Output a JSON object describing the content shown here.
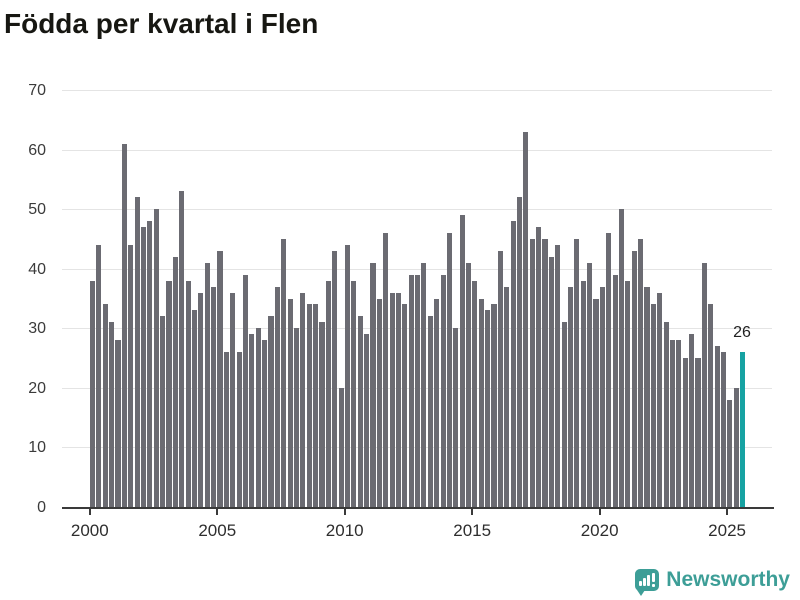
{
  "title": "Födda per kvartal i Flen",
  "annotation": {
    "last_value_label": "26"
  },
  "branding": {
    "logo_text": "Newsworthy",
    "logo_icon": "bar-chart-speech-bubble-icon"
  },
  "colors": {
    "bar": "#6b6b72",
    "highlight": "#16a2a2",
    "grid": "#e4e4e4",
    "axis": "#3a3a3a",
    "title_text": "#171712",
    "logo_teal": "#3d9e97"
  },
  "chart_data": {
    "type": "bar",
    "title": "Födda per kvartal i Flen",
    "unit": "births per quarter",
    "start_period": "2000-Q1",
    "end_period": "2025-Q3",
    "x_tick_labels": [
      "2000",
      "2005",
      "2010",
      "2015",
      "2020",
      "2025"
    ],
    "y_ticks": [
      0,
      10,
      20,
      30,
      40,
      50,
      60,
      70
    ],
    "ylim": [
      0,
      70
    ],
    "grid": true,
    "highlight_last_bar": true,
    "last_bar_label": 26,
    "series": [
      {
        "name": "Födda",
        "values_by_year": {
          "2000": [
            38,
            44,
            34,
            31
          ],
          "2001": [
            28,
            61,
            44,
            52
          ],
          "2002": [
            47,
            48,
            50,
            32
          ],
          "2003": [
            38,
            42,
            53,
            38
          ],
          "2004": [
            33,
            36,
            41,
            37
          ],
          "2005": [
            43,
            26,
            36,
            26
          ],
          "2006": [
            39,
            29,
            30,
            28
          ],
          "2007": [
            32,
            37,
            45,
            35
          ],
          "2008": [
            30,
            36,
            34,
            34
          ],
          "2009": [
            31,
            38,
            43,
            20
          ],
          "2010": [
            44,
            38,
            32,
            29
          ],
          "2011": [
            41,
            35,
            46,
            36
          ],
          "2012": [
            36,
            34,
            39,
            39
          ],
          "2013": [
            41,
            32,
            35,
            39
          ],
          "2014": [
            46,
            30,
            49,
            41
          ],
          "2015": [
            38,
            35,
            33,
            34
          ],
          "2016": [
            43,
            37,
            48,
            52
          ],
          "2017": [
            63,
            45,
            47,
            45
          ],
          "2018": [
            42,
            44,
            31,
            37
          ],
          "2019": [
            45,
            38,
            41,
            35
          ],
          "2020": [
            37,
            46,
            39,
            50
          ],
          "2021": [
            38,
            43,
            45,
            37
          ],
          "2022": [
            34,
            36,
            31,
            28
          ],
          "2023": [
            28,
            25,
            29,
            25
          ],
          "2024": [
            41,
            34,
            27,
            26
          ],
          "2025": [
            18,
            20,
            26
          ]
        }
      }
    ]
  }
}
